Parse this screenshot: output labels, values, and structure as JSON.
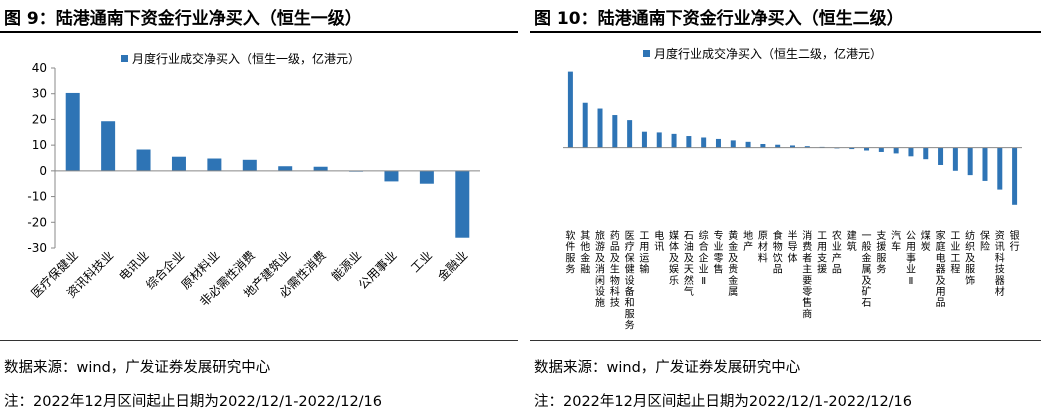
{
  "panels": [
    {
      "title": "图 9：陆港通南下资金行业净买入（恒生一级）",
      "source": "数据来源：wind，广发证券发展研究中心",
      "note": "注：2022年12月区间起止日期为2022/12/1-2022/12/16"
    },
    {
      "title": "图 10：陆港通南下资金行业净买入（恒生二级）",
      "source": "数据来源：wind，广发证券发展研究中心",
      "note": "注：2022年12月区间起止日期为2022/12/1-2022/12/16"
    }
  ],
  "chart_data": [
    {
      "type": "bar",
      "title": "",
      "legend": "月度行业成交净买入（恒生一级，亿港元）",
      "legend_position": "top",
      "categories": [
        "医疗保健业",
        "资讯科技业",
        "电讯业",
        "综合企业",
        "原材料业",
        "非必需性消费",
        "地产建筑业",
        "必需性消费",
        "能源业",
        "公用事业",
        "工业",
        "金融业"
      ],
      "series": [
        {
          "name": "月度行业成交净买入（恒生一级，亿港元）",
          "values": [
            30.3,
            19.3,
            8.3,
            5.5,
            4.8,
            4.3,
            1.8,
            1.6,
            -0.1,
            -4.1,
            -5.0,
            -26.0
          ]
        }
      ],
      "ylim": [
        -30,
        40
      ],
      "yticks": [
        "40",
        "30",
        "20",
        "10",
        "0",
        "-10",
        "-20",
        "-30"
      ],
      "xlabel": "",
      "ylabel": "",
      "grid": false,
      "bar_color": "#2e74b5"
    },
    {
      "type": "bar",
      "title": "",
      "legend": "月度行业成交净买入（恒生二级，亿港元）",
      "legend_position": "top",
      "categories": [
        "软件服务",
        "其他金融",
        "旅游及消闲设施",
        "药品及生物科技",
        "医疗保健设备和服务",
        "工用运输",
        "电讯",
        "媒体及娱乐",
        "石油及天然气",
        "综合企业Ⅱ",
        "专业零售",
        "黄金及贵金属",
        "地产",
        "原材料",
        "食物饮品",
        "半导体",
        "消费者主要零售商",
        "工用支援",
        "农业产品",
        "建筑",
        "一般金属及矿石",
        "支援服务",
        "汽车",
        "公用事业Ⅱ",
        "煤炭",
        "家庭电器及用品",
        "工业工程",
        "纺织及服饰",
        "保险",
        "资讯科技器材",
        "银行"
      ],
      "series": [
        {
          "name": "月度行业成交净买入（恒生二级，亿港元）",
          "values": [
            10.5,
            6.2,
            5.4,
            4.5,
            3.8,
            2.2,
            2.1,
            1.9,
            1.6,
            1.4,
            1.2,
            1.0,
            0.8,
            0.5,
            0.4,
            0.3,
            0.2,
            0.1,
            -0.1,
            -0.2,
            -0.4,
            -0.6,
            -0.8,
            -1.2,
            -1.6,
            -2.4,
            -3.2,
            -3.8,
            -4.6,
            -5.8,
            -7.9
          ]
        }
      ],
      "ylim": [
        -10,
        11
      ],
      "xlabel": "",
      "ylabel": "",
      "grid": false,
      "bar_color": "#2e74b5"
    }
  ]
}
